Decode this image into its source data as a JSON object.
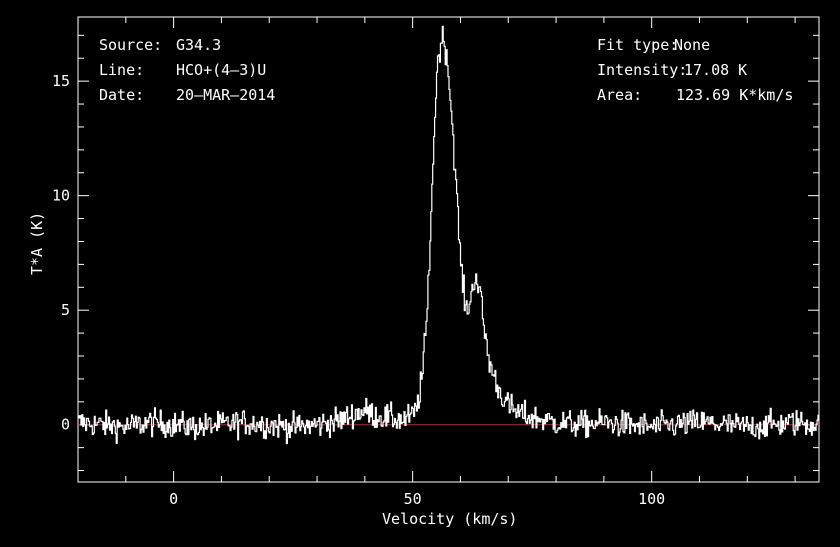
{
  "header": {
    "source_key": "Source:",
    "source_val": "G34.3",
    "line_key": "Line:",
    "line_val": "HCO+(4–3)U",
    "date_key": "Date:",
    "date_val": "20–MAR–2014",
    "fit_key": "Fit type:",
    "fit_val": "None",
    "intensity_key": "Intensity:",
    "intensity_val": "17.08 K",
    "area_key": "Area:",
    "area_val": "123.69 K*km/s"
  },
  "colors": {
    "background": "#000000",
    "trace": "#ffffff",
    "baseline": "#cc2222",
    "axes": "#ffffff"
  },
  "chart_data": {
    "type": "line",
    "xlabel": "Velocity (km/s)",
    "ylabel": "T*A (K)",
    "xlim": [
      -20,
      135
    ],
    "ylim": [
      -2.5,
      17.8
    ],
    "xticks": [
      0,
      50,
      100
    ],
    "yticks": [
      0,
      5,
      10,
      15
    ],
    "baseline_y": 0,
    "series": [
      {
        "values_x": [
          -20,
          -15,
          -10,
          -5,
          0,
          5,
          10,
          15,
          20,
          25,
          30,
          35,
          38,
          40,
          42,
          45,
          48,
          50,
          51,
          52,
          53,
          54,
          55,
          56,
          57,
          58,
          59,
          60,
          61,
          62,
          63,
          64,
          65,
          66,
          68,
          70,
          72,
          75,
          80,
          85,
          90,
          95,
          100,
          105,
          110,
          115,
          120,
          125,
          130,
          135
        ],
        "values_y": [
          0.1,
          0.0,
          -0.1,
          0.1,
          0.0,
          -0.1,
          0.0,
          0.1,
          0.0,
          -0.1,
          0.0,
          0.2,
          0.5,
          0.6,
          0.4,
          0.3,
          0.2,
          0.4,
          0.9,
          2.3,
          5.0,
          10.5,
          15.5,
          17.0,
          16.3,
          13.8,
          10.5,
          7.0,
          5.0,
          5.4,
          6.6,
          5.8,
          4.0,
          2.7,
          1.5,
          0.8,
          0.5,
          0.3,
          0.1,
          0.0,
          0.1,
          0.0,
          -0.1,
          0.0,
          0.1,
          0.0,
          -0.1,
          0.0,
          0.1,
          0.0
        ]
      }
    ]
  }
}
